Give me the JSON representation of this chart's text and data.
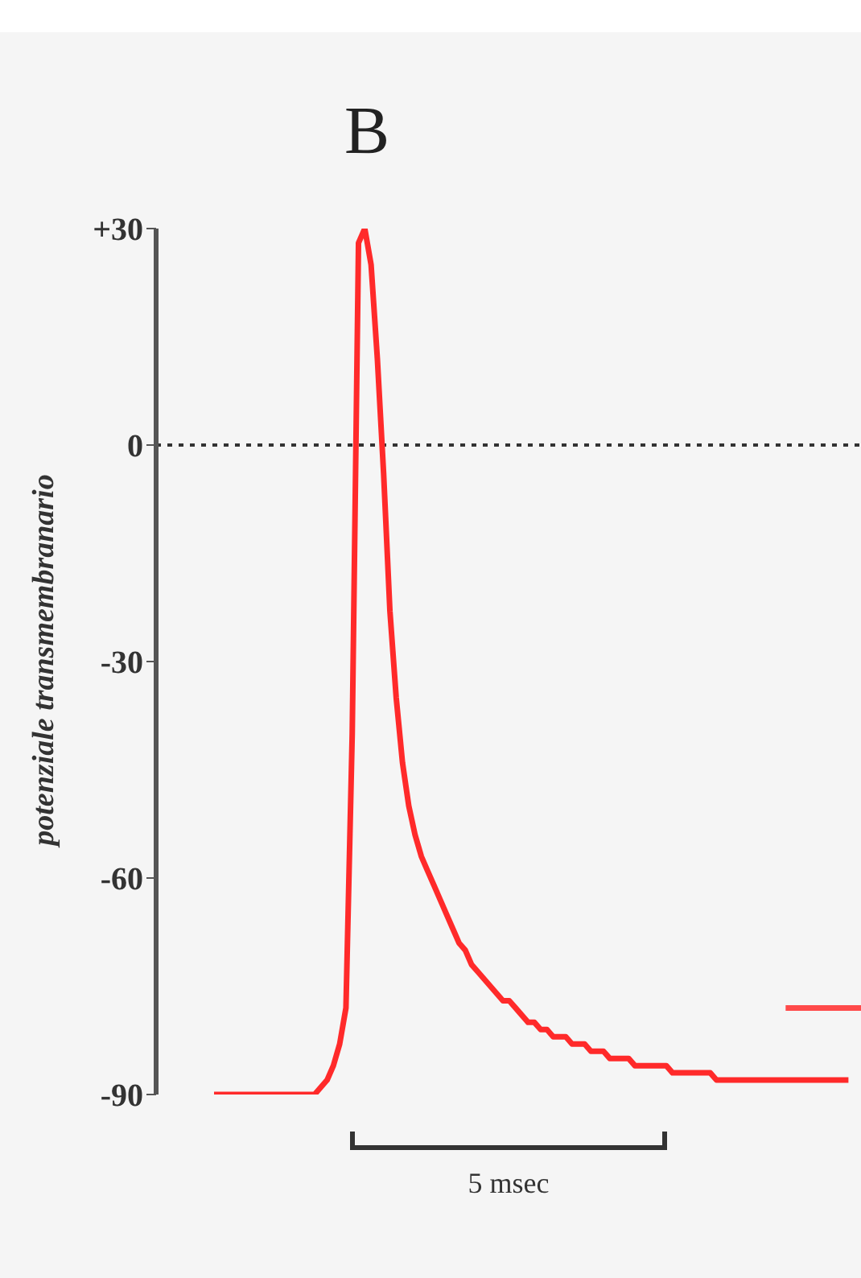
{
  "chart_data": {
    "type": "line",
    "title": "B",
    "ylabel": "potenziale transmembranario",
    "annotations": [
      "5 msec"
    ],
    "categories": [
      null,
      null,
      null,
      null,
      null,
      null,
      null,
      null,
      null,
      null,
      null,
      null,
      null,
      null,
      null,
      null,
      null,
      null,
      null,
      null,
      null,
      null,
      null,
      null,
      null,
      null,
      null,
      null,
      null,
      null,
      null,
      null,
      null,
      null,
      null,
      null,
      null,
      null,
      null,
      null,
      null,
      null,
      null,
      null,
      null,
      null,
      null,
      null,
      null,
      null,
      null,
      null,
      null,
      null,
      null,
      null,
      null,
      null,
      null,
      null,
      null,
      null,
      null,
      null,
      null,
      null,
      null,
      null,
      null,
      null,
      null,
      null,
      null,
      null,
      null,
      null,
      null,
      null,
      null,
      null,
      null,
      null,
      null,
      null,
      null,
      null,
      null,
      null,
      null,
      null,
      null,
      null,
      null,
      null,
      null,
      null,
      null,
      null,
      null,
      null,
      null,
      null,
      null,
      null
    ],
    "ylim": [
      -90,
      30
    ],
    "yticks": [
      {
        "value": 30,
        "label": "+30"
      },
      0,
      -30,
      -60,
      -90
    ],
    "tick_labels": "y",
    "grid": false,
    "legend": false,
    "marker": "none",
    "line_style": "solid",
    "ref_lines": [
      {
        "axis": "y",
        "value": 0,
        "color": "#333333",
        "line_style": "dotted"
      }
    ],
    "series": [
      {
        "color": "#ff2a2a",
        "values": [
          -90,
          -90,
          -90,
          -90,
          -90,
          -90,
          -90,
          -90,
          -90,
          -90,
          -90,
          -90,
          -90,
          -90,
          -90,
          -90,
          -90,
          -89,
          -88,
          -86,
          -83,
          -78,
          -40,
          28,
          30,
          25,
          12,
          -4,
          -23,
          -35,
          -44,
          -50,
          -54,
          -57,
          -59,
          -61,
          -63,
          -65,
          -67,
          -69,
          -70,
          -72,
          -73,
          -74,
          -75,
          -76,
          -77,
          -77,
          -78,
          -79,
          -80,
          -80,
          -81,
          -81,
          -82,
          -82,
          -82,
          -83,
          -83,
          -83,
          -84,
          -84,
          -84,
          -85,
          -85,
          -85,
          -85,
          -86,
          -86,
          -86,
          -86,
          -86,
          -86,
          -87,
          -87,
          -87,
          -87,
          -87,
          -87,
          -87,
          -88,
          -88,
          -88,
          -88,
          -88,
          -88,
          -88,
          -88,
          -88,
          -88,
          -88,
          -88,
          -88,
          -88,
          -88,
          -88,
          -88,
          -88,
          -88,
          -88,
          -88,
          -88,
          null,
          null
        ]
      },
      {
        "color": "#ff4a4a",
        "values": [
          null,
          null,
          null,
          null,
          null,
          null,
          null,
          null,
          null,
          null,
          null,
          null,
          null,
          null,
          null,
          null,
          null,
          null,
          null,
          null,
          null,
          null,
          null,
          null,
          null,
          null,
          null,
          null,
          null,
          null,
          null,
          null,
          null,
          null,
          null,
          null,
          null,
          null,
          null,
          null,
          null,
          null,
          null,
          null,
          null,
          null,
          null,
          null,
          null,
          null,
          null,
          null,
          null,
          null,
          null,
          null,
          null,
          null,
          null,
          null,
          null,
          null,
          null,
          null,
          null,
          null,
          null,
          null,
          null,
          null,
          null,
          null,
          null,
          null,
          null,
          null,
          null,
          null,
          null,
          null,
          null,
          null,
          null,
          null,
          null,
          null,
          null,
          null,
          null,
          null,
          null,
          -78,
          -78,
          -78,
          -78,
          -78,
          -78,
          -78,
          -78,
          -78,
          -78,
          -78,
          -78,
          -78
        ]
      }
    ]
  }
}
